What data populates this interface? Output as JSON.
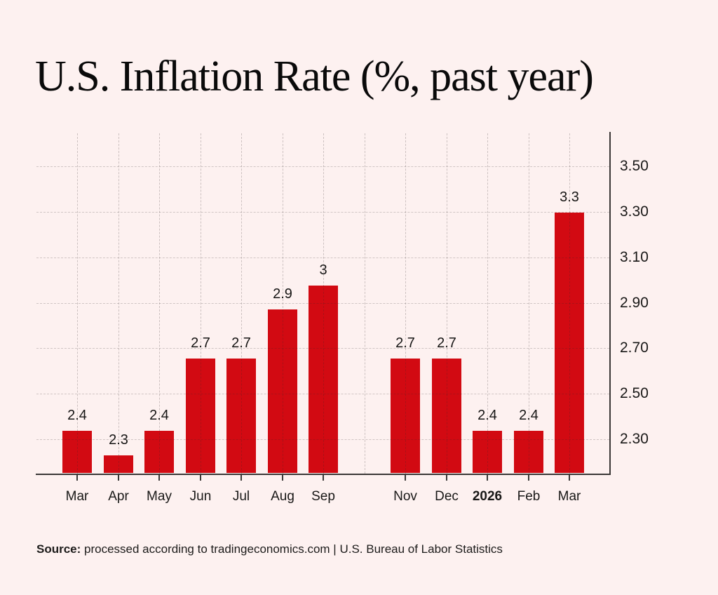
{
  "title": "U.S. Inflation Rate (%, past year)",
  "source": {
    "label": "Source:",
    "rest": " processed according to tradingeconomics.com | U.S. Bureau of Labor Statistics"
  },
  "chart_data": {
    "type": "bar",
    "title": "U.S. Inflation Rate (%, past year)",
    "xlabel": "",
    "ylabel": "",
    "y_axis_side": "right",
    "ylim": [
      2.15,
      3.65
    ],
    "grid": true,
    "background_color": "#fdf1f0",
    "bar_color": "#d20a12",
    "y_ticks": [
      {
        "label": "3.50",
        "value": 3.5
      },
      {
        "label": "3.30",
        "value": 3.3
      },
      {
        "label": "3.10",
        "value": 3.1
      },
      {
        "label": "2.90",
        "value": 2.9
      },
      {
        "label": "2.70",
        "value": 2.7
      },
      {
        "label": "2.50",
        "value": 2.5
      },
      {
        "label": "2.30",
        "value": 2.3
      }
    ],
    "months": [
      {
        "label": "Mar",
        "value": 2.4,
        "display": "2.4"
      },
      {
        "label": "Apr",
        "value": 2.3,
        "display": "2.3"
      },
      {
        "label": "May",
        "value": 2.4,
        "display": "2.4"
      },
      {
        "label": "Jun",
        "value": 2.7,
        "display": "2.7"
      },
      {
        "label": "Jul",
        "value": 2.7,
        "display": "2.7"
      },
      {
        "label": "Aug",
        "value": 2.9,
        "display": "2.9"
      },
      {
        "label": "Sep",
        "value": 3.0,
        "display": "3"
      },
      {
        "label": "",
        "value": null,
        "display": ""
      },
      {
        "label": "Nov",
        "value": 2.7,
        "display": "2.7"
      },
      {
        "label": "Dec",
        "value": 2.7,
        "display": "2.7"
      },
      {
        "label": "2026",
        "value": 2.4,
        "display": "2.4",
        "bold": true
      },
      {
        "label": "Feb",
        "value": 2.4,
        "display": "2.4"
      },
      {
        "label": "Mar",
        "value": 3.3,
        "display": "3.3"
      }
    ]
  }
}
